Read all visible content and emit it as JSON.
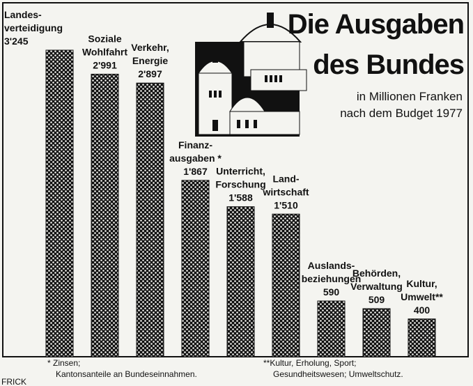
{
  "chart_data": {
    "type": "bar",
    "title": [
      "Die Ausgaben",
      "des Bundes"
    ],
    "subtitle": [
      "in Millionen Franken",
      "nach dem Budget 1977"
    ],
    "categories": [
      [
        "Landes-",
        "verteidigung"
      ],
      [
        "Soziale",
        "Wohlfahrt"
      ],
      [
        "Verkehr,",
        "Energie"
      ],
      [
        "Finanz-",
        "ausgaben *"
      ],
      [
        "Unterricht,",
        "Forschung"
      ],
      [
        "Land-",
        "wirtschaft"
      ],
      [
        "Auslands-",
        "beziehungen"
      ],
      [
        "Behörden,",
        "Verwaltung"
      ],
      [
        "Kultur,",
        "Umwelt**"
      ]
    ],
    "values": [
      3245,
      2991,
      2897,
      1867,
      1588,
      1510,
      590,
      509,
      400
    ],
    "value_labels": [
      "3'245",
      "2'991",
      "2'897",
      "1'867",
      "1'588",
      "1'510",
      "590",
      "509",
      "400"
    ],
    "color": "#111111",
    "footnotes": [
      [
        "* Zinsen;",
        "Kantonsanteile an Bundeseinnahmen."
      ],
      [
        "**Kultur, Erholung, Sport;",
        "Gesundheitswesen; Umweltschutz."
      ]
    ],
    "signature": "FRICK"
  }
}
